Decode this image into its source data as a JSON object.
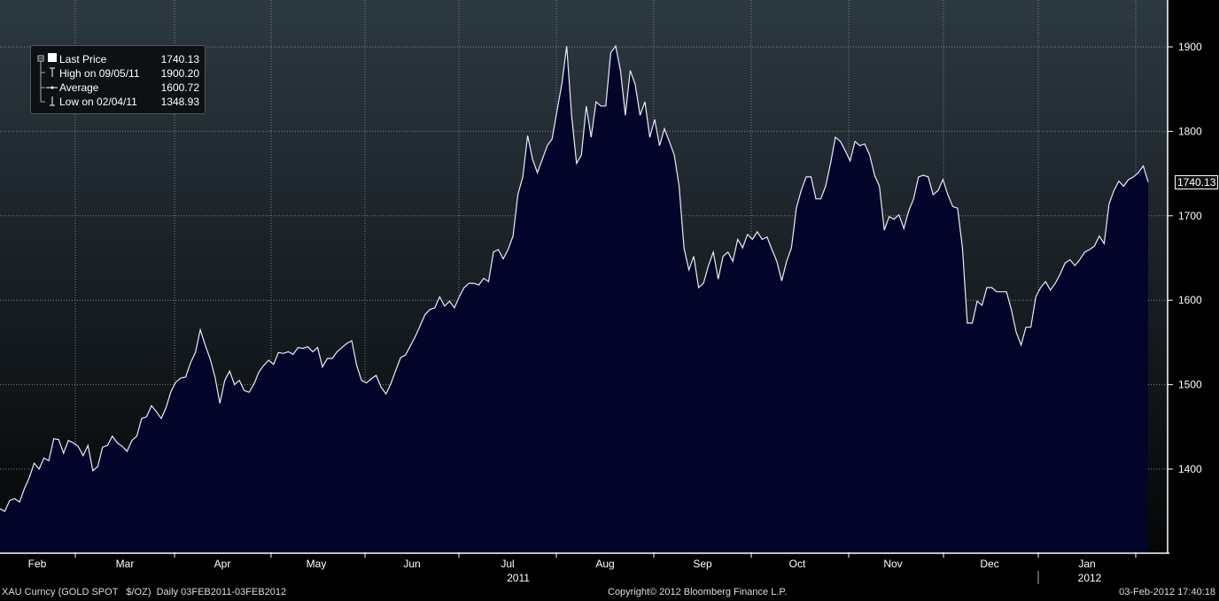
{
  "legend": {
    "last_price_label": "Last Price",
    "last_price_value": "1740.13",
    "high_label": "High on 09/05/11",
    "high_value": "1900.20",
    "average_label": "Average",
    "average_value": "1600.72",
    "low_label": "Low on 02/04/11",
    "low_value": "1348.93"
  },
  "price_tag": "1740.13",
  "footer": {
    "left": "XAU Curncy (GOLD SPOT   $/OZ)  Daily 03FEB2011-03FEB2012",
    "center": "Copyright© 2012 Bloomberg Finance L.P.",
    "right": "03-Feb-2012 17:40:18"
  },
  "colors": {
    "line": "#e8eef2",
    "fill_top": "#1b7d8f",
    "fill_bottom": "#03042a",
    "bg_top": "#2c3942",
    "bg_bottom": "#050607"
  },
  "chart_data": {
    "type": "area",
    "x_start": "2011-02-03",
    "x_end": "2012-02-03",
    "x_ticks": [
      "Feb",
      "Mar",
      "Apr",
      "May",
      "Jun",
      "Jul",
      "Aug",
      "Sep",
      "Oct",
      "Nov",
      "Dec",
      "Jan"
    ],
    "year_labels": [
      "2011",
      "2012"
    ],
    "y_ticks": [
      1400,
      1500,
      1600,
      1700,
      1800,
      1900
    ],
    "ylim": [
      1302,
      1955
    ],
    "y_axis_side": "right",
    "grid": true,
    "values": [
      1353,
      1350,
      1363,
      1365,
      1361,
      1377,
      1390,
      1407,
      1400,
      1413,
      1410,
      1436,
      1435,
      1419,
      1434,
      1431,
      1427,
      1416,
      1428,
      1398,
      1403,
      1426,
      1428,
      1439,
      1431,
      1427,
      1421,
      1434,
      1439,
      1460,
      1462,
      1475,
      1468,
      1460,
      1473,
      1492,
      1503,
      1508,
      1509,
      1526,
      1538,
      1565,
      1547,
      1531,
      1509,
      1478,
      1505,
      1516,
      1500,
      1505,
      1493,
      1491,
      1501,
      1515,
      1523,
      1529,
      1524,
      1538,
      1537,
      1539,
      1536,
      1544,
      1543,
      1545,
      1539,
      1544,
      1521,
      1531,
      1531,
      1539,
      1544,
      1549,
      1552,
      1523,
      1505,
      1502,
      1507,
      1511,
      1497,
      1489,
      1501,
      1517,
      1532,
      1535,
      1546,
      1557,
      1570,
      1583,
      1589,
      1591,
      1604,
      1593,
      1599,
      1591,
      1604,
      1615,
      1620,
      1620,
      1618,
      1626,
      1622,
      1657,
      1660,
      1649,
      1660,
      1676,
      1725,
      1746,
      1795,
      1767,
      1751,
      1767,
      1783,
      1791,
      1824,
      1856,
      1901,
      1819,
      1762,
      1772,
      1830,
      1793,
      1835,
      1830,
      1830,
      1893,
      1901,
      1872,
      1819,
      1872,
      1856,
      1819,
      1835,
      1793,
      1814,
      1783,
      1803,
      1788,
      1772,
      1735,
      1662,
      1636,
      1652,
      1615,
      1620,
      1641,
      1657,
      1625,
      1652,
      1657,
      1646,
      1672,
      1662,
      1678,
      1672,
      1681,
      1672,
      1675,
      1660,
      1646,
      1623,
      1646,
      1662,
      1709,
      1730,
      1746,
      1746,
      1720,
      1720,
      1735,
      1762,
      1793,
      1788,
      1777,
      1765,
      1788,
      1783,
      1785,
      1772,
      1748,
      1735,
      1683,
      1699,
      1696,
      1701,
      1685,
      1706,
      1720,
      1746,
      1748,
      1746,
      1725,
      1730,
      1743,
      1725,
      1711,
      1709,
      1662,
      1573,
      1573,
      1599,
      1594,
      1615,
      1615,
      1610,
      1610,
      1610,
      1589,
      1562,
      1547,
      1568,
      1568,
      1604,
      1615,
      1622,
      1612,
      1620,
      1631,
      1644,
      1648,
      1641,
      1648,
      1657,
      1660,
      1664,
      1676,
      1667,
      1714,
      1730,
      1741,
      1735,
      1743,
      1746,
      1751,
      1759,
      1740.13
    ]
  }
}
